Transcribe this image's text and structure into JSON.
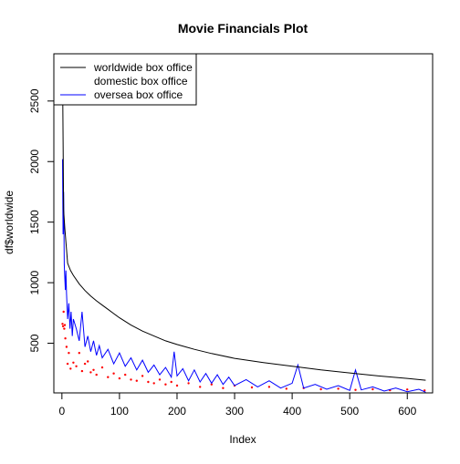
{
  "chart_data": {
    "type": "line",
    "title": "Movie Financials Plot",
    "xlabel": "Index",
    "ylabel": "df$worldwide",
    "xlim": [
      -14,
      644
    ],
    "ylim": [
      90,
      2890
    ],
    "x_ticks": [
      0,
      100,
      200,
      300,
      400,
      500,
      600
    ],
    "y_ticks": [
      500,
      1000,
      1500,
      2000,
      2500
    ],
    "grid": false,
    "legend_position": "top-left",
    "n_points": 632,
    "series": [
      {
        "name": "worldwide box office",
        "style": "line",
        "color": "#000000",
        "x": [
          1,
          2,
          3,
          5,
          10,
          15,
          20,
          30,
          40,
          50,
          60,
          70,
          80,
          90,
          100,
          120,
          140,
          160,
          180,
          200,
          230,
          260,
          300,
          350,
          400,
          450,
          500,
          550,
          600,
          632
        ],
        "values": [
          2790,
          2190,
          1600,
          1450,
          1160,
          1100,
          1060,
          990,
          935,
          890,
          850,
          815,
          780,
          745,
          710,
          650,
          600,
          560,
          520,
          490,
          450,
          415,
          375,
          340,
          310,
          280,
          255,
          230,
          210,
          195
        ]
      },
      {
        "name": "domestic box office",
        "style": "points",
        "color": "#ff0000",
        "x": [
          1,
          2,
          3,
          4,
          5,
          6,
          8,
          10,
          12,
          15,
          20,
          25,
          30,
          35,
          40,
          45,
          50,
          55,
          60,
          70,
          80,
          90,
          100,
          110,
          120,
          130,
          140,
          150,
          160,
          170,
          180,
          190,
          200,
          220,
          240,
          260,
          280,
          300,
          330,
          360,
          390,
          420,
          450,
          480,
          510,
          540,
          570,
          600,
          630
        ],
        "values": [
          660,
          640,
          760,
          620,
          650,
          540,
          470,
          330,
          420,
          290,
          340,
          310,
          420,
          270,
          330,
          350,
          260,
          280,
          240,
          300,
          220,
          250,
          210,
          240,
          200,
          190,
          230,
          180,
          170,
          200,
          160,
          180,
          150,
          170,
          140,
          160,
          130,
          150,
          135,
          140,
          125,
          130,
          120,
          125,
          115,
          120,
          112,
          118,
          110
        ]
      },
      {
        "name": "oversea box office",
        "style": "line",
        "color": "#0000ff",
        "x": [
          1,
          2,
          3,
          4,
          5,
          6,
          7,
          8,
          10,
          12,
          14,
          16,
          18,
          20,
          25,
          30,
          35,
          40,
          45,
          50,
          55,
          60,
          65,
          70,
          80,
          90,
          100,
          110,
          120,
          130,
          140,
          150,
          160,
          170,
          180,
          190,
          195,
          200,
          210,
          220,
          230,
          240,
          250,
          260,
          270,
          280,
          290,
          300,
          320,
          340,
          360,
          380,
          400,
          410,
          420,
          440,
          460,
          480,
          500,
          510,
          520,
          540,
          560,
          580,
          600,
          620,
          632
        ],
        "values": [
          2020,
          1400,
          1750,
          1150,
          1040,
          940,
          1100,
          910,
          700,
          830,
          620,
          760,
          560,
          700,
          620,
          520,
          760,
          470,
          560,
          430,
          520,
          400,
          480,
          380,
          450,
          330,
          420,
          310,
          380,
          280,
          360,
          260,
          320,
          240,
          300,
          220,
          430,
          230,
          290,
          190,
          280,
          180,
          250,
          170,
          240,
          160,
          220,
          150,
          200,
          140,
          190,
          130,
          170,
          320,
          130,
          160,
          120,
          150,
          110,
          280,
          115,
          140,
          105,
          130,
          100,
          120,
          95
        ]
      }
    ]
  }
}
